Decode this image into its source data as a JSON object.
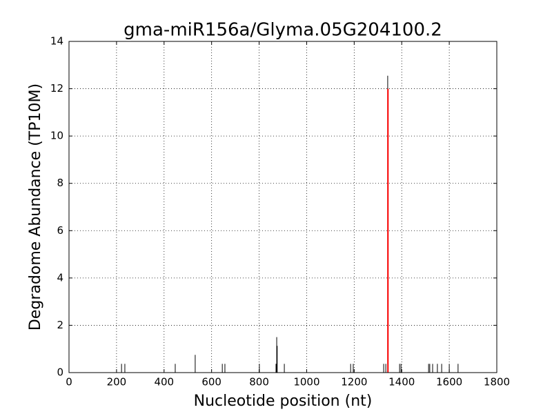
{
  "chart_data": {
    "type": "stem",
    "title": "gma-miR156a/Glyma.05G204100.2",
    "x_label": "Nucleotide position (nt)",
    "y_label": "Degradome Abundance (TP10M)",
    "xlim": [
      0,
      1800
    ],
    "ylim": [
      0,
      14
    ],
    "xticks": [
      0,
      200,
      400,
      600,
      800,
      1000,
      1200,
      1400,
      1600,
      1800
    ],
    "yticks": [
      0,
      2,
      4,
      6,
      8,
      10,
      12,
      14
    ],
    "grid": true,
    "series": [
      {
        "color": "#000000",
        "x": [
          221,
          235,
          447,
          531,
          645,
          656,
          801,
          871,
          874,
          876,
          906,
          1185,
          1196,
          1324,
          1333,
          1341,
          1391,
          1397,
          1513,
          1518,
          1530,
          1550,
          1568,
          1600,
          1637
        ],
        "values": [
          0.37,
          0.37,
          0.37,
          0.75,
          0.37,
          0.37,
          0.37,
          0.37,
          1.5,
          1.13,
          0.37,
          0.37,
          0.37,
          0.37,
          0.37,
          12.55,
          0.37,
          0.37,
          0.37,
          0.37,
          0.37,
          0.37,
          0.37,
          0.37,
          0.37
        ]
      },
      {
        "color": "#ff0000",
        "x": [
          1342
        ],
        "values": [
          12
        ]
      }
    ]
  }
}
